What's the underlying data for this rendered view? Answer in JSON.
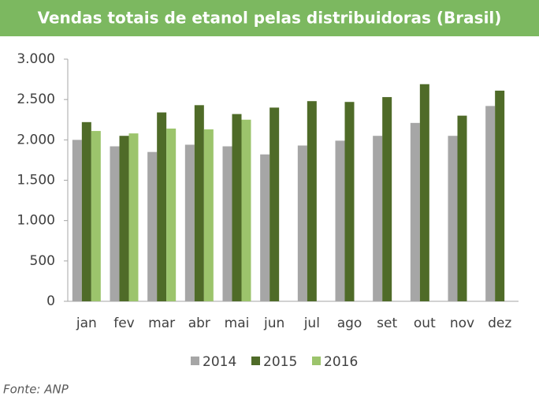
{
  "chart_data": {
    "type": "bar",
    "title": "Vendas  totais de etanol pelas distribuidoras (Brasil)",
    "categories": [
      "jan",
      "fev",
      "mar",
      "abr",
      "mai",
      "jun",
      "jul",
      "ago",
      "set",
      "out",
      "nov",
      "dez"
    ],
    "series": [
      {
        "name": "2014",
        "color": "#a6a6a6",
        "values": [
          2000,
          1920,
          1850,
          1940,
          1920,
          1820,
          1930,
          1990,
          2050,
          2210,
          2050,
          2420
        ]
      },
      {
        "name": "2015",
        "color": "#4f6b28",
        "values": [
          2220,
          2050,
          2340,
          2430,
          2320,
          2400,
          2480,
          2470,
          2530,
          2690,
          2300,
          2610
        ]
      },
      {
        "name": "2016",
        "color": "#9cc46c",
        "values": [
          2110,
          2080,
          2140,
          2130,
          2250,
          null,
          null,
          null,
          null,
          null,
          null,
          null
        ]
      }
    ],
    "ylim": [
      0,
      3000
    ],
    "yticks": [
      0,
      500,
      {
        "value": 1000,
        "label": "1.000"
      },
      {
        "value": 1500,
        "label": "1.500"
      },
      {
        "value": 2000,
        "label": "2.000"
      },
      {
        "value": 2500,
        "label": "2.500"
      },
      {
        "value": 3000,
        "label": "3.000"
      }
    ],
    "grid": false,
    "source": "Fonte: ANP"
  }
}
